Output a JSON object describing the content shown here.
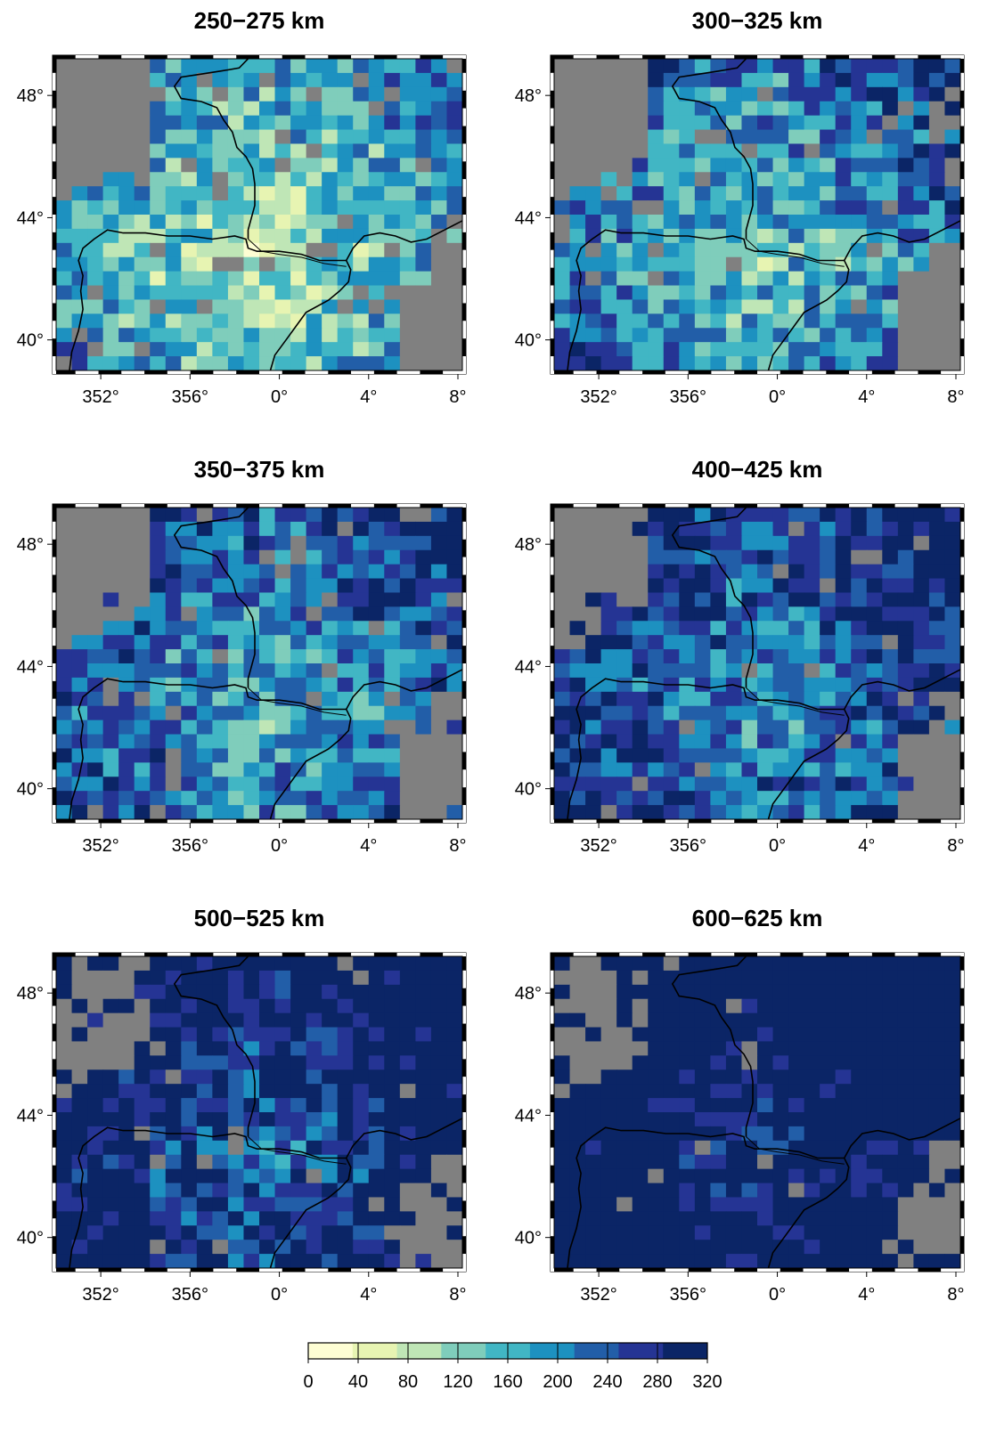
{
  "panels": [
    {
      "title": "250−275 km",
      "fill_bias": 0.0,
      "gray_pct": 22
    },
    {
      "title": "300−325 km",
      "fill_bias": 0.18,
      "gray_pct": 20
    },
    {
      "title": "350−375 km",
      "fill_bias": 0.28,
      "gray_pct": 16
    },
    {
      "title": "400−425 km",
      "fill_bias": 0.4,
      "gray_pct": 12
    },
    {
      "title": "500−525 km",
      "fill_bias": 0.58,
      "gray_pct": 8
    },
    {
      "title": "600−625 km",
      "fill_bias": 0.8,
      "gray_pct": 5
    }
  ],
  "x_ticks": [
    "352°",
    "356°",
    "0°",
    "4°",
    "8°"
  ],
  "x_tick_values": [
    352,
    356,
    360,
    364,
    368
  ],
  "y_ticks": [
    "48°",
    "44°",
    "40°"
  ],
  "y_tick_values": [
    48,
    44,
    40
  ],
  "lon_range": [
    350,
    368.2
  ],
  "lat_range": [
    39,
    49.2
  ],
  "colorbar": {
    "ticks": [
      "0",
      "40",
      "80",
      "120",
      "160",
      "200",
      "240",
      "280",
      "320"
    ],
    "colors": [
      "#fdfdd3",
      "#e7f4b2",
      "#bfe6b6",
      "#7fcdbb",
      "#41b6c4",
      "#1d91c0",
      "#225ea8",
      "#253494",
      "#0b2566"
    ],
    "nodata_color": "#808080"
  }
}
